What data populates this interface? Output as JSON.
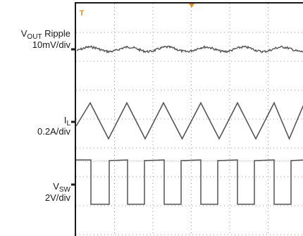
{
  "chart_data": {
    "type": "line",
    "colors": {
      "trace": "#555555",
      "grid": "#9a9a9a",
      "frame": "#1a1a1a",
      "marker": "#f08c1e"
    },
    "grid": true,
    "series": [
      {
        "name": "V_OUT Ripple",
        "label_main": "V",
        "label_sub": "OUT",
        "label_suffix": " Ripple",
        "scale": "10mV/div",
        "waveform": "ripple"
      },
      {
        "name": "I_L",
        "label_main": "I",
        "label_sub": "L",
        "label_suffix": "",
        "scale": "0.2A/div",
        "waveform": "triangle"
      },
      {
        "name": "V_SW",
        "label_main": "V",
        "label_sub": "SW",
        "label_suffix": "",
        "scale": "2V/div",
        "waveform": "square"
      }
    ],
    "trigger_marker": "T"
  }
}
